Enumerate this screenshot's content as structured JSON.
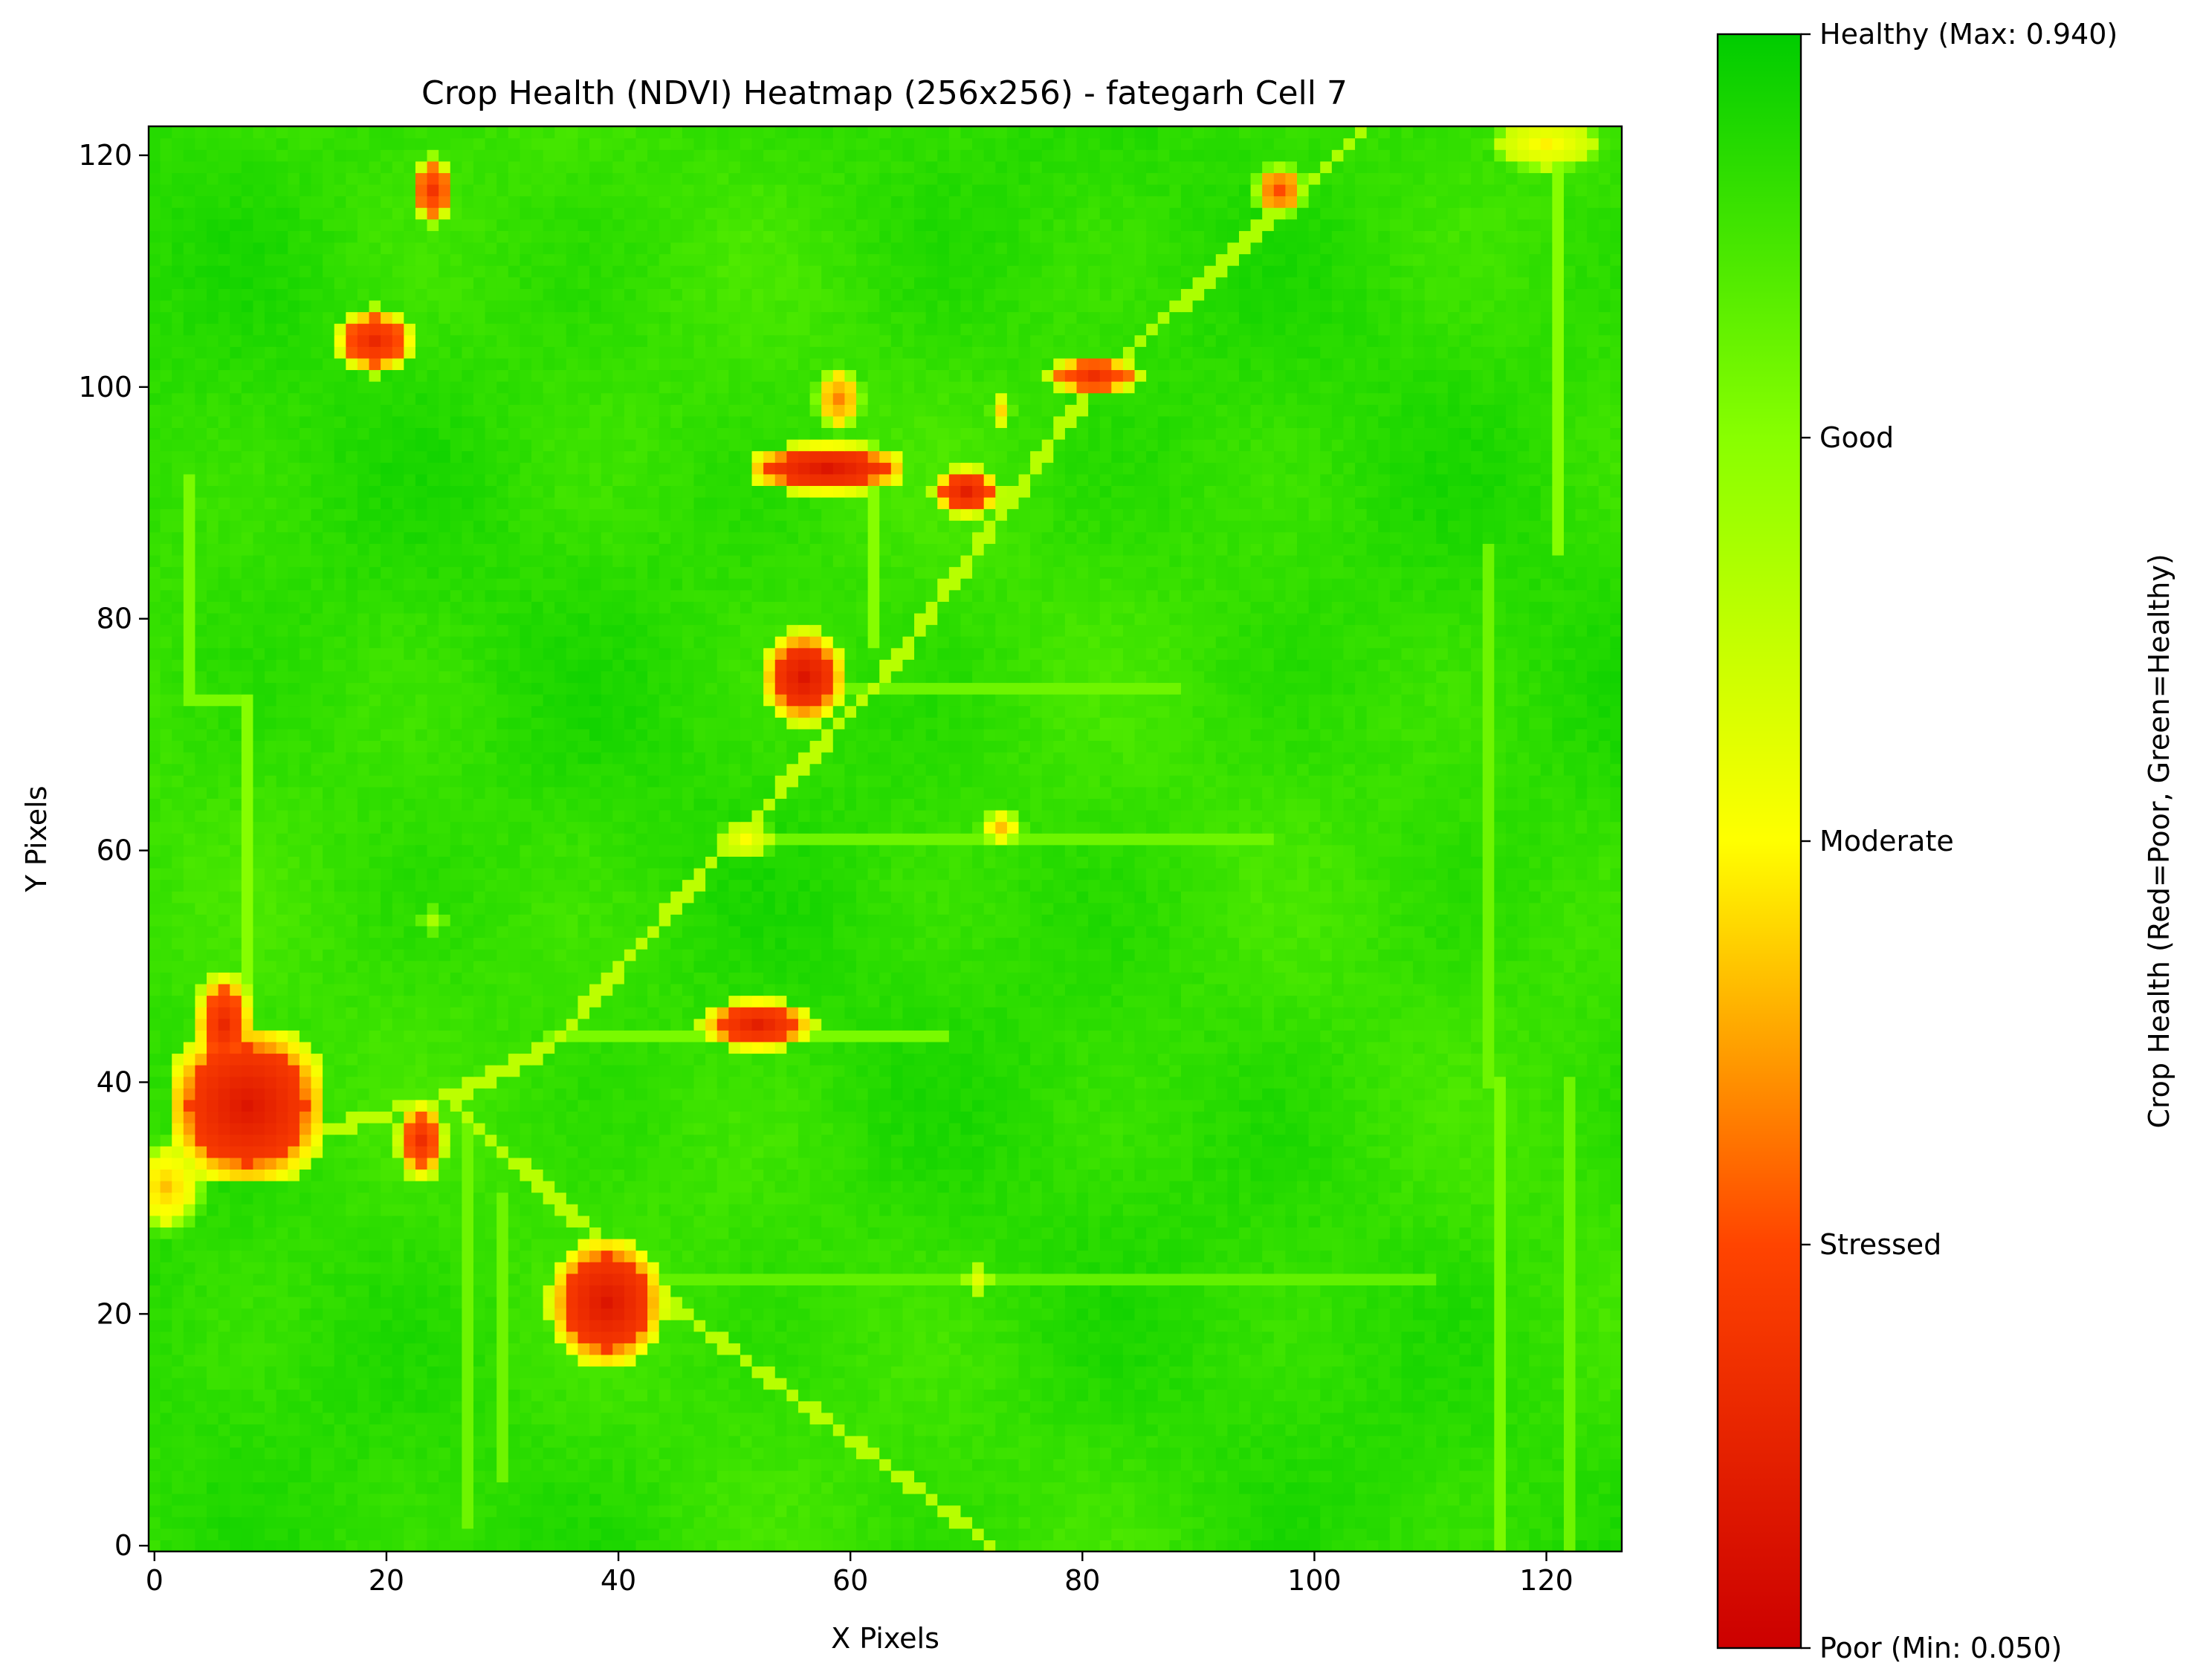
{
  "chart_data": {
    "type": "heatmap",
    "title": "Crop Health (NDVI) Heatmap (256x256) - fategarh Cell 7",
    "xlabel": "X Pixels",
    "ylabel": "Y Pixels",
    "xlim": [
      -0.5,
      126.5
    ],
    "ylim": [
      -0.5,
      122.5
    ],
    "x_ticks": [
      0,
      20,
      40,
      60,
      80,
      100,
      120
    ],
    "y_ticks": [
      0,
      20,
      40,
      60,
      80,
      100,
      120
    ],
    "origin": "lower-left",
    "grid": false,
    "value_range": [
      0.05,
      0.94
    ],
    "colormap": [
      "#cc0000",
      "#ff4400",
      "#ffff00",
      "#88ff00",
      "#00cc00"
    ],
    "colorbar": {
      "label": "Crop Health (Red=Poor, Green=Healthy)",
      "ticks": [
        {
          "value": 0.05,
          "label": "Poor (Min: 0.050)"
        },
        {
          "value": 0.2725,
          "label": "Stressed"
        },
        {
          "value": 0.495,
          "label": "Moderate"
        },
        {
          "value": 0.7175,
          "label": "Good"
        },
        {
          "value": 0.94,
          "label": "Healthy (Max: 0.940)"
        }
      ]
    },
    "background_value": 0.86,
    "features": {
      "lines": [
        {
          "from": [
            0,
            32
          ],
          "to": [
            26,
            39
          ],
          "value": 0.62
        },
        {
          "from": [
            26,
            39
          ],
          "to": [
            34,
            43
          ],
          "value": 0.62
        },
        {
          "from": [
            34,
            43
          ],
          "to": [
            50,
            61
          ],
          "value": 0.62
        },
        {
          "from": [
            50,
            61
          ],
          "to": [
            62,
            74
          ],
          "value": 0.62
        },
        {
          "from": [
            62,
            74
          ],
          "to": [
            81,
            100
          ],
          "value": 0.63
        },
        {
          "from": [
            81,
            100
          ],
          "to": [
            104,
            122
          ],
          "value": 0.65
        },
        {
          "from": [
            26,
            38
          ],
          "to": [
            42,
            23
          ],
          "value": 0.63
        },
        {
          "from": [
            42,
            23
          ],
          "to": [
            72,
            0
          ],
          "value": 0.63
        },
        {
          "from": [
            8,
            35
          ],
          "to": [
            8,
            73
          ],
          "value": 0.72
        },
        {
          "from": [
            8,
            73
          ],
          "to": [
            3,
            73
          ],
          "value": 0.74
        },
        {
          "from": [
            3,
            73
          ],
          "to": [
            3,
            92
          ],
          "value": 0.74
        },
        {
          "from": [
            34,
            44
          ],
          "to": [
            68,
            44
          ],
          "value": 0.74
        },
        {
          "from": [
            53,
            61
          ],
          "to": [
            96,
            61
          ],
          "value": 0.76
        },
        {
          "from": [
            60,
            74
          ],
          "to": [
            88,
            74
          ],
          "value": 0.76
        },
        {
          "from": [
            116,
            0
          ],
          "to": [
            116,
            40
          ],
          "value": 0.74
        },
        {
          "from": [
            122,
            0
          ],
          "to": [
            122,
            40
          ],
          "value": 0.76
        },
        {
          "from": [
            27,
            36
          ],
          "to": [
            27,
            2
          ],
          "value": 0.76
        },
        {
          "from": [
            30,
            30
          ],
          "to": [
            30,
            6
          ],
          "value": 0.76
        },
        {
          "from": [
            121,
            86
          ],
          "to": [
            121,
            120
          ],
          "value": 0.72
        },
        {
          "from": [
            115,
            86
          ],
          "to": [
            115,
            40
          ],
          "value": 0.76
        },
        {
          "from": [
            62,
            78
          ],
          "to": [
            62,
            95
          ],
          "value": 0.72
        },
        {
          "from": [
            42,
            23
          ],
          "to": [
            110,
            23
          ],
          "value": 0.78
        }
      ],
      "blobs": [
        {
          "x": 8,
          "y": 38,
          "rx": 5,
          "ry": 5,
          "value": 0.12
        },
        {
          "x": 6,
          "y": 45,
          "rx": 1.8,
          "ry": 3.2,
          "value": 0.18
        },
        {
          "x": 1,
          "y": 31,
          "rx": 2.5,
          "ry": 3,
          "value": 0.42
        },
        {
          "x": 23,
          "y": 35,
          "rx": 1.5,
          "ry": 2.5,
          "value": 0.2
        },
        {
          "x": 39,
          "y": 21,
          "rx": 3.5,
          "ry": 4,
          "value": 0.12
        },
        {
          "x": 52,
          "y": 45,
          "rx": 3.5,
          "ry": 1.6,
          "value": 0.15
        },
        {
          "x": 56,
          "y": 75,
          "rx": 2.5,
          "ry": 2.8,
          "value": 0.12
        },
        {
          "x": 58,
          "y": 93,
          "rx": 5,
          "ry": 1.5,
          "value": 0.12
        },
        {
          "x": 59,
          "y": 99,
          "rx": 1.5,
          "ry": 2,
          "value": 0.35
        },
        {
          "x": 70,
          "y": 91,
          "rx": 2,
          "ry": 1.5,
          "value": 0.15
        },
        {
          "x": 81,
          "y": 101,
          "rx": 3,
          "ry": 1.2,
          "value": 0.2
        },
        {
          "x": 19,
          "y": 104,
          "rx": 2.5,
          "ry": 2,
          "value": 0.18
        },
        {
          "x": 24,
          "y": 117,
          "rx": 1.3,
          "ry": 2,
          "value": 0.22
        },
        {
          "x": 97,
          "y": 117,
          "rx": 1.5,
          "ry": 1.5,
          "value": 0.28
        },
        {
          "x": 120,
          "y": 121,
          "rx": 4,
          "ry": 2,
          "value": 0.48
        },
        {
          "x": 51,
          "y": 61,
          "rx": 2,
          "ry": 1.5,
          "value": 0.5
        },
        {
          "x": 73,
          "y": 62,
          "rx": 1.5,
          "ry": 1.2,
          "value": 0.42
        },
        {
          "x": 73,
          "y": 98,
          "rx": 0.8,
          "ry": 1.2,
          "value": 0.45
        },
        {
          "x": 71,
          "y": 23,
          "rx": 1,
          "ry": 1.5,
          "value": 0.55
        },
        {
          "x": 24,
          "y": 54,
          "rx": 1,
          "ry": 1,
          "value": 0.66
        }
      ]
    }
  }
}
